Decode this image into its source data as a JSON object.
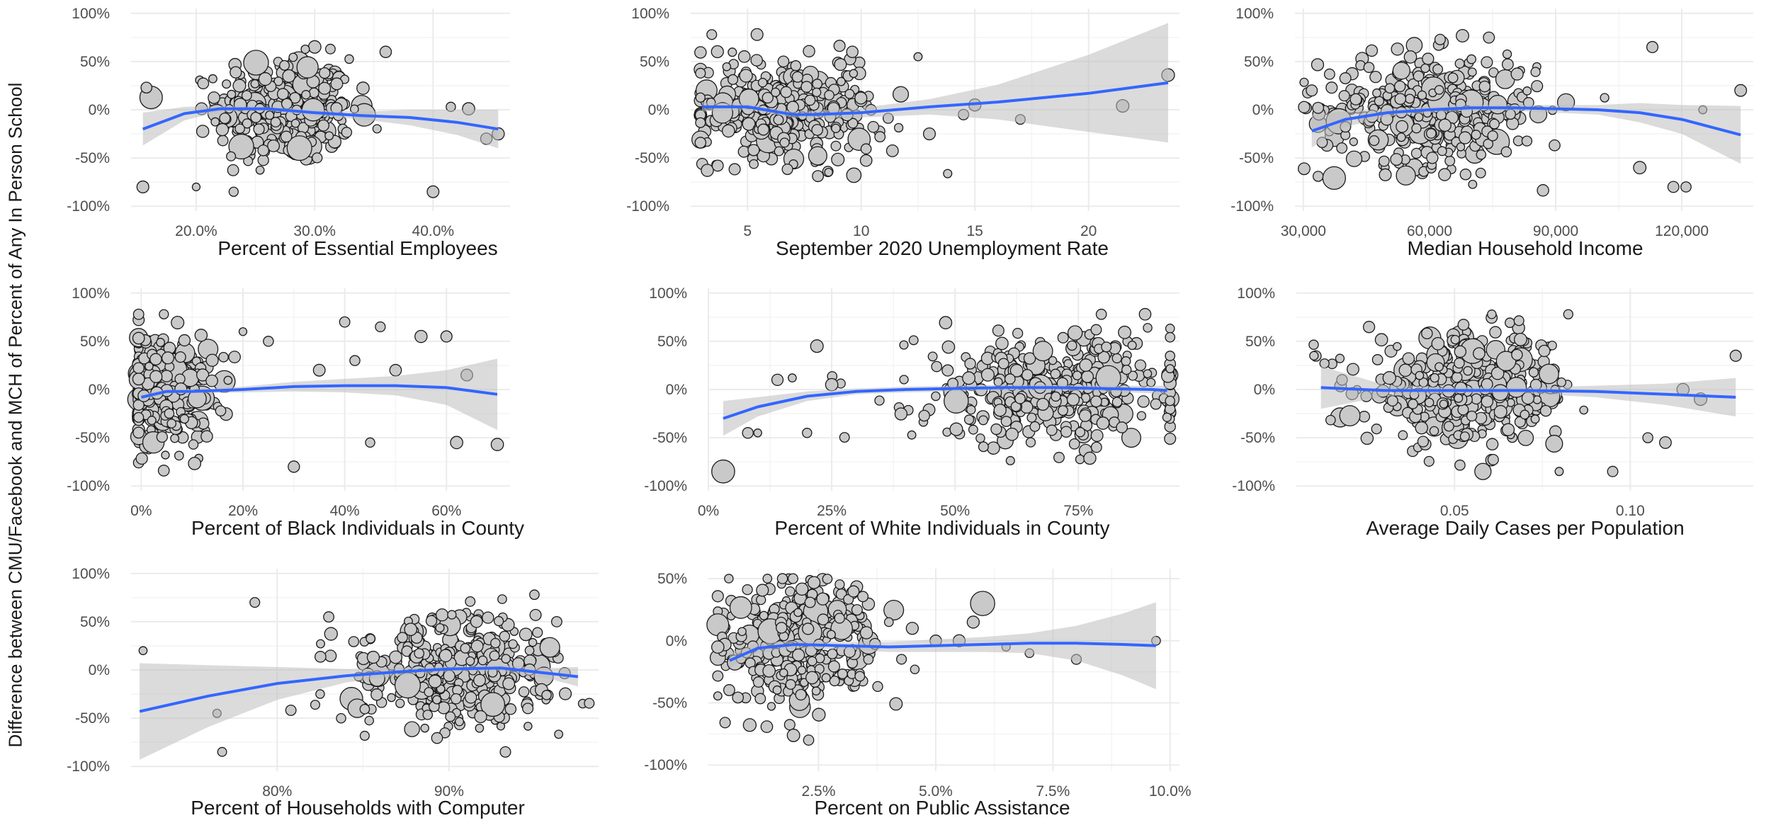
{
  "figure": {
    "y_title": "Difference between CMU/Facebook and MCH of Percent of Any In Person School"
  },
  "colors": {
    "point_fill": "#c9c9c9",
    "point_stroke": "#1a1a1a",
    "smooth_line": "#3366ff",
    "ribbon": "#bdbdbd",
    "grid_major": "#ebebeb",
    "grid_minor": "#f4f4f4",
    "axis_text": "#4d4d4d",
    "title_text": "#1a1a1a"
  },
  "chart_data": [
    {
      "id": "essential",
      "type": "scatter",
      "xlabel": "Percent of Essential Employees",
      "xlim": [
        0.145,
        0.465
      ],
      "ylim": [
        -1.05,
        1.05
      ],
      "xticks": [
        0.2,
        0.3,
        0.4
      ],
      "xtick_labels": [
        "20.0%",
        "30.0%",
        "40.0%"
      ],
      "yticks": [
        -1,
        -0.5,
        0,
        0.5,
        1
      ],
      "ytick_labels": [
        "-100%",
        "-50%",
        "0%",
        "50%",
        "100%"
      ],
      "smooth": {
        "x": [
          0.155,
          0.19,
          0.22,
          0.26,
          0.3,
          0.34,
          0.38,
          0.42,
          0.455
        ],
        "y": [
          -0.2,
          -0.04,
          0.01,
          0.01,
          -0.03,
          -0.06,
          -0.08,
          -0.13,
          -0.2
        ],
        "se": [
          0.17,
          0.07,
          0.03,
          0.02,
          0.03,
          0.04,
          0.08,
          0.13,
          0.2
        ]
      },
      "cluster": {
        "x_mean": 0.275,
        "x_sd": 0.028,
        "y_sd": 0.27,
        "n": 380
      },
      "outliers": [
        [
          0.155,
          -0.8
        ],
        [
          0.158,
          0.23
        ],
        [
          0.2,
          -0.8
        ],
        [
          0.36,
          0.6
        ],
        [
          0.4,
          -0.85
        ],
        [
          0.415,
          0.03
        ],
        [
          0.43,
          0.01
        ],
        [
          0.445,
          -0.3
        ],
        [
          0.455,
          -0.25
        ]
      ]
    },
    {
      "id": "unemployment",
      "type": "scatter",
      "xlabel": "September 2020 Unemployment Rate",
      "xlim": [
        2.5,
        24
      ],
      "ylim": [
        -1.05,
        1.05
      ],
      "xticks": [
        5,
        10,
        15,
        20
      ],
      "xtick_labels": [
        "5",
        "10",
        "15",
        "20"
      ],
      "yticks": [
        -1,
        -0.5,
        0,
        0.5,
        1
      ],
      "ytick_labels": [
        "-100%",
        "-50%",
        "0%",
        "50%",
        "100%"
      ],
      "smooth": {
        "x": [
          3,
          5,
          7,
          8,
          10,
          13,
          16,
          20,
          23.5
        ],
        "y": [
          0.03,
          0.03,
          -0.05,
          -0.05,
          -0.03,
          0.03,
          0.08,
          0.17,
          0.28
        ],
        "se": [
          0.05,
          0.03,
          0.03,
          0.04,
          0.05,
          0.08,
          0.18,
          0.4,
          0.62
        ]
      },
      "cluster": {
        "x_mean": 6.6,
        "x_sd": 2.1,
        "y_sd": 0.27,
        "n": 360
      },
      "outliers": [
        [
          12.5,
          0.55
        ],
        [
          13,
          -0.25
        ],
        [
          14.5,
          -0.05
        ],
        [
          15,
          0.05
        ],
        [
          17,
          -0.1
        ],
        [
          21.5,
          0.04
        ],
        [
          23.5,
          0.36
        ]
      ]
    },
    {
      "id": "income",
      "type": "scatter",
      "xlabel": "Median Household Income",
      "xlim": [
        28000,
        137000
      ],
      "ylim": [
        -1.05,
        1.05
      ],
      "xticks": [
        30000,
        60000,
        90000,
        120000
      ],
      "xtick_labels": [
        "30,000",
        "60,000",
        "90,000",
        "120,000"
      ],
      "yticks": [
        -1,
        -0.5,
        0,
        0.5,
        1
      ],
      "ytick_labels": [
        "-100%",
        "-50%",
        "0%",
        "50%",
        "100%"
      ],
      "smooth": {
        "x": [
          32000,
          40000,
          50000,
          60000,
          70000,
          80000,
          90000,
          100000,
          110000,
          120000,
          134000
        ],
        "y": [
          -0.22,
          -0.1,
          -0.03,
          0.0,
          0.02,
          0.02,
          0.01,
          0.0,
          -0.03,
          -0.1,
          -0.26
        ],
        "se": [
          0.17,
          0.08,
          0.04,
          0.03,
          0.03,
          0.03,
          0.04,
          0.05,
          0.1,
          0.15,
          0.3
        ]
      },
      "cluster": {
        "x_mean": 60000,
        "x_sd": 13000,
        "y_sd": 0.29,
        "n": 380
      },
      "outliers": [
        [
          32000,
          0.2
        ],
        [
          33500,
          0.02
        ],
        [
          110000,
          -0.6
        ],
        [
          113000,
          0.65
        ],
        [
          118000,
          -0.8
        ],
        [
          121000,
          -0.8
        ],
        [
          125000,
          0.0
        ],
        [
          134000,
          0.2
        ]
      ]
    },
    {
      "id": "black",
      "type": "scatter",
      "xlabel": "Percent of Black Individuals in County",
      "xlim": [
        -0.02,
        0.725
      ],
      "ylim": [
        -1.05,
        1.05
      ],
      "xticks": [
        0,
        0.2,
        0.4,
        0.6
      ],
      "xtick_labels": [
        "0%",
        "20%",
        "40%",
        "60%"
      ],
      "yticks": [
        -1,
        -0.5,
        0,
        0.5,
        1
      ],
      "ytick_labels": [
        "-100%",
        "-50%",
        "0%",
        "50%",
        "100%"
      ],
      "smooth": {
        "x": [
          0,
          0.05,
          0.1,
          0.2,
          0.3,
          0.4,
          0.5,
          0.6,
          0.7
        ],
        "y": [
          -0.08,
          -0.02,
          -0.02,
          0.0,
          0.03,
          0.04,
          0.04,
          0.02,
          -0.05
        ],
        "se": [
          0.03,
          0.02,
          0.02,
          0.03,
          0.05,
          0.07,
          0.1,
          0.18,
          0.37
        ]
      },
      "cluster": {
        "x_mean": 0.04,
        "x_sd": 0.05,
        "y_sd": 0.29,
        "n": 360
      },
      "outliers": [
        [
          0.2,
          0.6
        ],
        [
          0.25,
          0.5
        ],
        [
          0.3,
          -0.8
        ],
        [
          0.35,
          0.2
        ],
        [
          0.4,
          0.7
        ],
        [
          0.42,
          0.3
        ],
        [
          0.45,
          -0.55
        ],
        [
          0.47,
          0.65
        ],
        [
          0.5,
          0.2
        ],
        [
          0.55,
          0.55
        ],
        [
          0.6,
          0.55
        ],
        [
          0.62,
          -0.55
        ],
        [
          0.64,
          0.15
        ],
        [
          0.7,
          -0.57
        ]
      ]
    },
    {
      "id": "white",
      "type": "scatter",
      "xlabel": "Percent of White Individuals in County",
      "xlim": [
        0,
        0.955
      ],
      "ylim": [
        -1.05,
        1.05
      ],
      "xticks": [
        0,
        0.25,
        0.5,
        0.75
      ],
      "xtick_labels": [
        "0%",
        "25%",
        "50%",
        "75%"
      ],
      "yticks": [
        -1,
        -0.5,
        0,
        0.5,
        1
      ],
      "ytick_labels": [
        "-100%",
        "-50%",
        "0%",
        "50%",
        "100%"
      ],
      "smooth": {
        "x": [
          0.03,
          0.1,
          0.2,
          0.3,
          0.4,
          0.5,
          0.6,
          0.7,
          0.8,
          0.9,
          0.93
        ],
        "y": [
          -0.3,
          -0.18,
          -0.07,
          -0.02,
          0.0,
          0.01,
          0.02,
          0.02,
          0.01,
          0.0,
          -0.01
        ],
        "se": [
          0.18,
          0.1,
          0.05,
          0.03,
          0.03,
          0.03,
          0.03,
          0.03,
          0.03,
          0.04,
          0.05
        ]
      },
      "cluster": {
        "x_mean": 0.7,
        "x_sd": 0.14,
        "y_sd": 0.29,
        "n": 380
      },
      "outliers": [
        [
          0.03,
          -0.85
        ],
        [
          0.08,
          -0.45
        ],
        [
          0.1,
          -0.45
        ],
        [
          0.14,
          0.1
        ],
        [
          0.17,
          0.12
        ],
        [
          0.2,
          -0.45
        ],
        [
          0.22,
          0.45
        ],
        [
          0.25,
          0.05
        ]
      ]
    },
    {
      "id": "cases",
      "type": "scatter",
      "xlabel": "Average Daily Cases per Population",
      "xlim": [
        0.005,
        0.135
      ],
      "ylim": [
        -1.05,
        1.05
      ],
      "xticks": [
        0.05,
        0.1
      ],
      "xtick_labels": [
        "0.05",
        "0.10"
      ],
      "yticks": [
        -1,
        -0.5,
        0,
        0.5,
        1
      ],
      "ytick_labels": [
        "-100%",
        "-50%",
        "0%",
        "50%",
        "100%"
      ],
      "smooth": {
        "x": [
          0.012,
          0.03,
          0.05,
          0.07,
          0.09,
          0.11,
          0.13
        ],
        "y": [
          0.02,
          -0.01,
          -0.01,
          -0.01,
          -0.02,
          -0.05,
          -0.08
        ],
        "se": [
          0.22,
          0.06,
          0.03,
          0.03,
          0.06,
          0.11,
          0.2
        ]
      },
      "cluster": {
        "x_mean": 0.055,
        "x_sd": 0.015,
        "y_sd": 0.28,
        "n": 380
      },
      "outliers": [
        [
          0.01,
          0.35
        ],
        [
          0.013,
          0.27
        ],
        [
          0.018,
          0.1
        ],
        [
          0.095,
          -0.85
        ],
        [
          0.105,
          -0.5
        ],
        [
          0.11,
          -0.55
        ],
        [
          0.115,
          0.0
        ],
        [
          0.12,
          -0.1
        ],
        [
          0.13,
          0.35
        ]
      ]
    },
    {
      "id": "computer",
      "type": "scatter",
      "xlabel": "Percent of Households with Computer",
      "xlim": [
        0.715,
        0.987
      ],
      "ylim": [
        -1.05,
        1.05
      ],
      "xticks": [
        0.8,
        0.9
      ],
      "xtick_labels": [
        "80%",
        "90%"
      ],
      "yticks": [
        -1,
        -0.5,
        0,
        0.5,
        1
      ],
      "ytick_labels": [
        "-100%",
        "-50%",
        "0%",
        "50%",
        "100%"
      ],
      "smooth": {
        "x": [
          0.72,
          0.76,
          0.8,
          0.84,
          0.87,
          0.9,
          0.93,
          0.96,
          0.975
        ],
        "y": [
          -0.43,
          -0.27,
          -0.14,
          -0.06,
          -0.02,
          0.01,
          0.02,
          -0.04,
          -0.07
        ],
        "se": [
          0.5,
          0.32,
          0.17,
          0.07,
          0.04,
          0.03,
          0.03,
          0.06,
          0.1
        ]
      },
      "cluster": {
        "x_mean": 0.905,
        "x_sd": 0.03,
        "y_sd": 0.28,
        "n": 380
      },
      "outliers": [
        [
          0.722,
          0.2
        ],
        [
          0.765,
          -0.45
        ],
        [
          0.768,
          -0.85
        ],
        [
          0.787,
          0.7
        ],
        [
          0.825,
          -0.25
        ],
        [
          0.83,
          0.55
        ]
      ]
    },
    {
      "id": "assistance",
      "type": "scatter",
      "xlabel": "Percent on Public Assistance",
      "xlim": [
        0.0015,
        0.102
      ],
      "ylim": [
        -1.05,
        0.58
      ],
      "xticks": [
        0.025,
        0.05,
        0.075,
        0.1
      ],
      "xtick_labels": [
        "2.5%",
        "5.0%",
        "7.5%",
        "10.0%"
      ],
      "yticks": [
        -1,
        -0.5,
        0,
        0.5
      ],
      "ytick_labels": [
        "-100%",
        "-50%",
        "0%",
        "50%"
      ],
      "smooth": {
        "x": [
          0.006,
          0.012,
          0.02,
          0.03,
          0.04,
          0.05,
          0.06,
          0.07,
          0.08,
          0.09,
          0.097
        ],
        "y": [
          -0.16,
          -0.06,
          -0.03,
          -0.04,
          -0.05,
          -0.04,
          -0.03,
          -0.02,
          -0.02,
          -0.03,
          -0.04
        ],
        "se": [
          0.06,
          0.04,
          0.03,
          0.03,
          0.04,
          0.05,
          0.06,
          0.08,
          0.14,
          0.25,
          0.35
        ]
      },
      "cluster": {
        "x_mean": 0.021,
        "x_sd": 0.008,
        "y_sd": 0.26,
        "n": 380
      },
      "outliers": [
        [
          0.04,
          0.15
        ],
        [
          0.045,
          0.1
        ],
        [
          0.05,
          0.0
        ],
        [
          0.055,
          0.0
        ],
        [
          0.058,
          0.15
        ],
        [
          0.06,
          0.3
        ],
        [
          0.065,
          -0.05
        ],
        [
          0.07,
          -0.1
        ],
        [
          0.08,
          -0.15
        ],
        [
          0.097,
          0.0
        ]
      ]
    }
  ]
}
